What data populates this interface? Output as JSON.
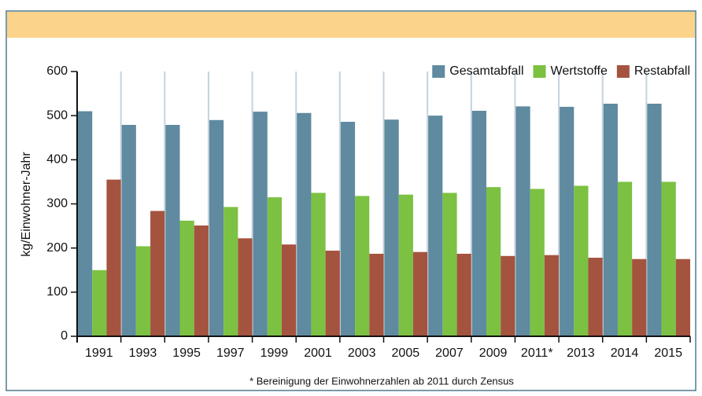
{
  "chart_data": {
    "type": "bar",
    "y_label": "kg/Einwohner-Jahr",
    "footnote": "* Bereinigung der Einwohnerzahlen ab 2011 durch Zensus",
    "categories": [
      "1991",
      "1993",
      "1995",
      "1997",
      "1999",
      "2001",
      "2003",
      "2005",
      "2007",
      "2009",
      "2011*",
      "2013",
      "2014",
      "2015"
    ],
    "series": [
      {
        "name": "Gesamtabfall",
        "color": "#5f8aa0",
        "values": [
          510,
          479,
          479,
          490,
          509,
          506,
          486,
          491,
          500,
          511,
          521,
          520,
          527,
          527
        ]
      },
      {
        "name": "Wertstoffe",
        "color": "#7cc142",
        "values": [
          150,
          204,
          262,
          293,
          315,
          325,
          318,
          321,
          325,
          338,
          334,
          341,
          350,
          350
        ]
      },
      {
        "name": "Restabfall",
        "color": "#a4533f",
        "values": [
          355,
          284,
          251,
          222,
          208,
          194,
          187,
          191,
          187,
          182,
          184,
          178,
          175,
          175
        ]
      }
    ],
    "ylim": [
      0,
      600
    ],
    "yticks": [
      0,
      100,
      200,
      300,
      400,
      500,
      600
    ],
    "legend": "top-right"
  }
}
